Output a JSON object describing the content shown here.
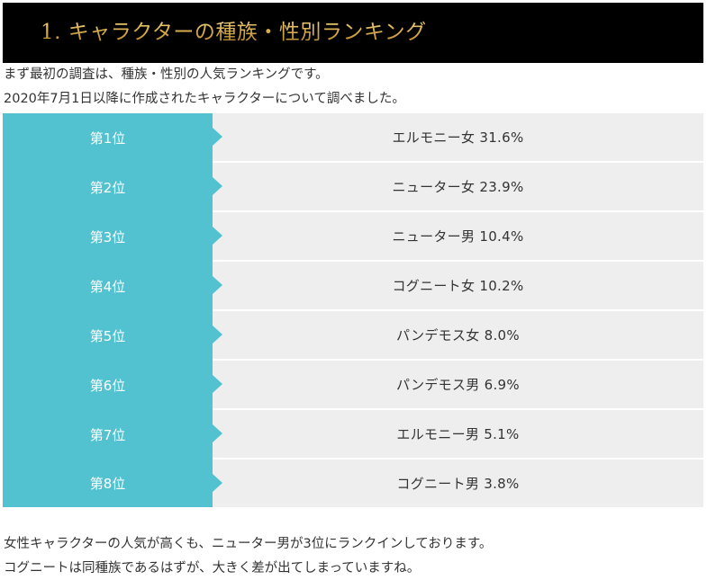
{
  "heading": {
    "title": "1. キャラクターの種族・性別ランキング"
  },
  "intro": {
    "line1": "まず最初の調査は、種族・性別の人気ランキングです。",
    "line2": "2020年7月1日以降に作成されたキャラクターについて調べました。"
  },
  "colors": {
    "heading_bg": "#000000",
    "heading_text": "#c99a3c",
    "rank_label_bg": "#53c2d0",
    "rank_value_bg": "#eeeeee"
  },
  "ranking": [
    {
      "rank": "第1位",
      "entry": "エルモニー女 31.6%"
    },
    {
      "rank": "第2位",
      "entry": "ニューター女 23.9%"
    },
    {
      "rank": "第3位",
      "entry": "ニューター男 10.4%"
    },
    {
      "rank": "第4位",
      "entry": "コグニート女 10.2%"
    },
    {
      "rank": "第5位",
      "entry": "パンデモス女 8.0%"
    },
    {
      "rank": "第6位",
      "entry": "パンデモス男 6.9%"
    },
    {
      "rank": "第7位",
      "entry": "エルモニー男 5.1%"
    },
    {
      "rank": "第8位",
      "entry": "コグニート男 3.8%"
    }
  ],
  "outro": {
    "line1": "女性キャラクターの人気が高くも、ニューター男が3位にランクインしております。",
    "line2": "コグニートは同種族であるはずが、大きく差が出てしまっていますね。"
  }
}
